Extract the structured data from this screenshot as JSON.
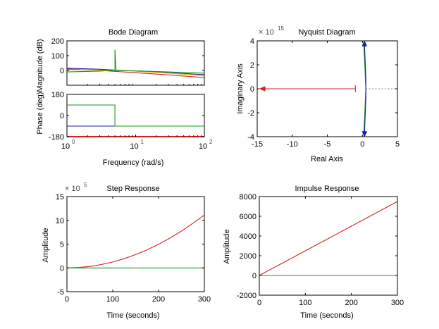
{
  "figure": {
    "background": "#ffffff",
    "colors": {
      "red": "#d62020",
      "green": "#1a9a1a",
      "blue": "#1a1aa8",
      "gold": "#d0b000",
      "axis": "#000000"
    }
  },
  "chart_data": [
    {
      "id": "bode",
      "type": "line",
      "title": "Bode Diagram",
      "xlabel": "Frequency  (rad/s)",
      "ylabel": "Phase (deg)Magnitude (dB)",
      "xscale": "log",
      "xlim": [
        1,
        100
      ],
      "xtick_labels": [
        "10",
        "10",
        "10"
      ],
      "xtick_exponents": [
        "0",
        "1",
        "2"
      ],
      "magnitude": {
        "ylim": [
          -100,
          200
        ],
        "ytick_labels": [
          "0",
          "100",
          "200"
        ],
        "ytick_values": [
          0,
          100,
          200
        ],
        "series": [
          {
            "color": "red",
            "x": [
              1,
              3,
              10,
              30,
              100
            ],
            "y": [
              10,
              0,
              -15,
              -30,
              -48
            ]
          },
          {
            "color": "blue",
            "x": [
              1,
              3,
              10,
              30,
              100
            ],
            "y": [
              15,
              8,
              -5,
              -15,
              -28
            ]
          },
          {
            "color": "gold",
            "x": [
              1,
              3,
              10,
              30,
              100
            ],
            "y": [
              5,
              3,
              -5,
              -18,
              -35
            ]
          },
          {
            "color": "green",
            "x": [
              1,
              3,
              4.5,
              5,
              5,
              5.2,
              10,
              30,
              100
            ],
            "y": [
              -10,
              -5,
              0,
              0,
              140,
              0,
              -3,
              -10,
              -18
            ]
          }
        ]
      },
      "phase": {
        "ylim": [
          -180,
          180
        ],
        "ytick_labels": [
          "-180",
          "0",
          "180"
        ],
        "ytick_values": [
          -180,
          0,
          180
        ],
        "series": [
          {
            "color": "red",
            "x": [
              1,
              100
            ],
            "y": [
              -180,
              -180
            ]
          },
          {
            "color": "blue",
            "x": [
              1,
              100
            ],
            "y": [
              -90,
              -90
            ]
          },
          {
            "color": "green",
            "x": [
              1,
              5,
              5,
              100
            ],
            "y": [
              90,
              90,
              -90,
              -90
            ]
          }
        ]
      }
    },
    {
      "id": "nyquist",
      "type": "line",
      "title": "Nyquist Diagram",
      "xlabel": "Real Axis",
      "ylabel": "Imaginary Axis",
      "multiplier_base": "× 10",
      "multiplier_exp": "15",
      "xlim": [
        -15,
        5
      ],
      "ylim": [
        -4,
        4
      ],
      "xtick_labels": [
        "-15",
        "-10",
        "-5",
        "0",
        "5"
      ],
      "xtick_values": [
        -15,
        -10,
        -5,
        0,
        5
      ],
      "ytick_labels": [
        "-4",
        "-2",
        "0",
        "2",
        "4"
      ],
      "ytick_values": [
        -4,
        -2,
        0,
        2,
        4
      ],
      "zero_line": {
        "x": [
          0.5,
          5
        ],
        "y": [
          0,
          0
        ],
        "style": "dotted"
      },
      "series": [
        {
          "color": "red",
          "x": [
            -14.6,
            -1.0
          ],
          "y": [
            0,
            0
          ]
        },
        {
          "color": "green",
          "x": [
            0.2,
            0.35,
            0.45,
            0.5,
            0.45,
            0.35,
            0.2
          ],
          "y": [
            -3.9,
            -2,
            -0.5,
            0,
            0.5,
            2,
            3.9
          ]
        },
        {
          "color": "blue",
          "x": [
            0.3,
            0.42,
            0.5,
            0.5,
            0.5,
            0.42,
            0.3
          ],
          "y": [
            -3.8,
            -2,
            -0.8,
            0,
            0.8,
            2,
            3.8
          ]
        }
      ],
      "markers": [
        {
          "color": "red",
          "x": -14.2,
          "y": 0,
          "shape": "arrow-left"
        },
        {
          "color": "red",
          "x": -1.0,
          "y": 0,
          "shape": "tick"
        },
        {
          "color": "blue",
          "x": 0.3,
          "y": 3.75,
          "shape": "arrow-up"
        },
        {
          "color": "blue",
          "x": 0.3,
          "y": -3.75,
          "shape": "arrow-down"
        }
      ]
    },
    {
      "id": "step",
      "type": "line",
      "title": "Step Response",
      "xlabel": "Time (seconds)",
      "ylabel": "Amplitude",
      "multiplier_base": "× 10",
      "multiplier_exp": "5",
      "xlim": [
        0,
        300
      ],
      "ylim": [
        -5,
        15
      ],
      "xtick_labels": [
        "0",
        "100",
        "200",
        "300"
      ],
      "xtick_values": [
        0,
        100,
        200,
        300
      ],
      "ytick_labels": [
        "-5",
        "0",
        "5",
        "10",
        "15"
      ],
      "ytick_values": [
        -5,
        0,
        5,
        10,
        15
      ],
      "series": [
        {
          "color": "red",
          "x": [
            0,
            25,
            50,
            75,
            100,
            125,
            150,
            175,
            200,
            225,
            250,
            275,
            300
          ],
          "y": [
            0,
            0.08,
            0.31,
            0.7,
            1.24,
            1.94,
            2.79,
            3.8,
            4.96,
            6.28,
            7.75,
            9.38,
            11.1
          ]
        },
        {
          "color": "green",
          "x": [
            0,
            300
          ],
          "y": [
            0,
            0
          ]
        }
      ]
    },
    {
      "id": "impulse",
      "type": "line",
      "title": "Impulse Response",
      "xlabel": "Time (seconds)",
      "ylabel": "Amplitude",
      "xlim": [
        0,
        300
      ],
      "ylim": [
        -2000,
        8000
      ],
      "xtick_labels": [
        "0",
        "100",
        "200",
        "300"
      ],
      "xtick_values": [
        0,
        100,
        200,
        300
      ],
      "ytick_labels": [
        "-2000",
        "0",
        "2000",
        "4000",
        "6000",
        "8000"
      ],
      "ytick_values": [
        -2000,
        0,
        2000,
        4000,
        6000,
        8000
      ],
      "series": [
        {
          "color": "red",
          "x": [
            0,
            300
          ],
          "y": [
            0,
            7500
          ]
        },
        {
          "color": "green",
          "x": [
            0,
            300
          ],
          "y": [
            0,
            0
          ]
        }
      ]
    }
  ]
}
